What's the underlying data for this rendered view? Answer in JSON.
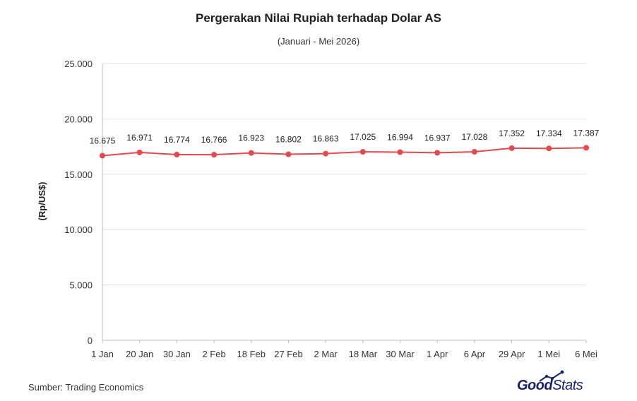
{
  "chart_data": {
    "type": "line",
    "title": "Pergerakan Nilai Rupiah terhadap Dolar AS",
    "subtitle": "(Januari - Mei 2026)",
    "ylabel": "(Rp/US$)",
    "xlabel": "",
    "ylim": [
      0,
      25000
    ],
    "yticks": [
      0,
      5000,
      10000,
      15000,
      20000,
      25000
    ],
    "ytick_labels": [
      "0",
      "5.000",
      "10.000",
      "15.000",
      "20.000",
      "25.000"
    ],
    "grid": true,
    "legend": "none",
    "categories": [
      "1 Jan",
      "20 Jan",
      "30 Jan",
      "2 Feb",
      "18 Feb",
      "27 Feb",
      "2 Mar",
      "18 Mar",
      "30 Mar",
      "1 Apr",
      "6 Apr",
      "29 Apr",
      "1 Mei",
      "6 Mei"
    ],
    "series": [
      {
        "values": [
          16675,
          16971,
          16774,
          16766,
          16923,
          16802,
          16863,
          17025,
          16994,
          16937,
          17028,
          17352,
          17334,
          17387
        ],
        "value_labels": [
          "16.675",
          "16.971",
          "16.774",
          "16.766",
          "16.923",
          "16.802",
          "16.863",
          "17.025",
          "16.994",
          "16.937",
          "17.028",
          "17.352",
          "17.334",
          "17.387"
        ],
        "color": "#e5484d"
      }
    ]
  },
  "footer": {
    "source": "Sumber: Trading Economics"
  },
  "brand": {
    "name_bold": "Good",
    "name_light": "Stats",
    "color": "#1a1f6b"
  },
  "colors": {
    "line": "#e5484d",
    "grid": "#e3e3e3",
    "axis": "#bdbdbd",
    "text": "#1f1f1f"
  }
}
